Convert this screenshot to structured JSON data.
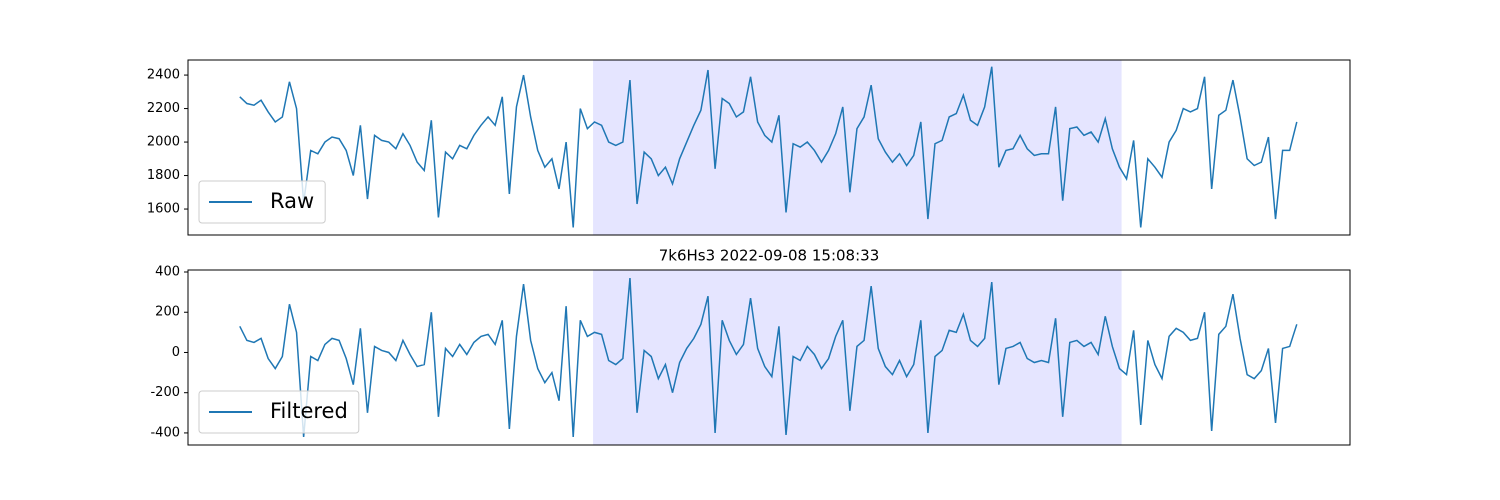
{
  "chart_data": [
    {
      "type": "line",
      "xlim": [
        -7.3,
        156.5
      ],
      "ylim": [
        1445,
        2490
      ],
      "yticks": [
        1600,
        1800,
        2000,
        2200,
        2400
      ],
      "grid": false,
      "legend": "lower left",
      "span": [
        49.8,
        124.3
      ],
      "span_color": "#e5e5ff",
      "series": [
        {
          "name": "Raw",
          "color": "#1f77b4",
          "values": [
            2270,
            2230,
            2220,
            2250,
            2180,
            2120,
            2150,
            2360,
            2200,
            1640,
            1950,
            1930,
            2000,
            2030,
            2020,
            1950,
            1800,
            2100,
            1660,
            2040,
            2010,
            2000,
            1960,
            2050,
            1980,
            1880,
            1830,
            2130,
            1550,
            1940,
            1900,
            1980,
            1960,
            2040,
            2100,
            2150,
            2100,
            2270,
            1690,
            2210,
            2400,
            2150,
            1950,
            1850,
            1900,
            1720,
            2000,
            1490,
            2200,
            2080,
            2120,
            2100,
            2000,
            1980,
            2000,
            2370,
            1630,
            1940,
            1900,
            1800,
            1850,
            1750,
            1900,
            2000,
            2100,
            2190,
            2430,
            1840,
            2260,
            2230,
            2150,
            2180,
            2390,
            2120,
            2040,
            2000,
            2160,
            1580,
            1990,
            1970,
            2000,
            1950,
            1880,
            1950,
            2050,
            2210,
            1700,
            2080,
            2150,
            2340,
            2020,
            1940,
            1880,
            1930,
            1860,
            1920,
            2120,
            1540,
            1990,
            2010,
            2150,
            2170,
            2280,
            2130,
            2100,
            2210,
            2450,
            1850,
            1950,
            1960,
            2040,
            1960,
            1920,
            1930,
            1930,
            2210,
            1650,
            2080,
            2090,
            2040,
            2060,
            2000,
            2140,
            1960,
            1850,
            1780,
            2010,
            1490,
            1900,
            1850,
            1790,
            2000,
            2070,
            2200,
            2180,
            2200,
            2390,
            1720,
            2160,
            2190,
            2370,
            2150,
            1900,
            1860,
            1880,
            2030,
            1540,
            1950,
            1950,
            2120
          ]
        }
      ]
    },
    {
      "type": "line",
      "title": "7k6Hs3 2022-09-08 15:08:33",
      "xlim": [
        -7.3,
        156.5
      ],
      "ylim": [
        -460,
        410
      ],
      "yticks": [
        -400,
        -200,
        0,
        200,
        400
      ],
      "grid": false,
      "legend": "lower left",
      "span": [
        49.8,
        124.3
      ],
      "span_color": "#e5e5ff",
      "series": [
        {
          "name": "Filtered",
          "color": "#1f77b4",
          "values": [
            130,
            60,
            50,
            70,
            -30,
            -80,
            -20,
            240,
            100,
            -420,
            -20,
            -40,
            40,
            70,
            60,
            -30,
            -160,
            120,
            -300,
            30,
            10,
            0,
            -40,
            60,
            -10,
            -70,
            -60,
            200,
            -320,
            20,
            -20,
            40,
            -10,
            50,
            80,
            90,
            40,
            160,
            -380,
            80,
            340,
            60,
            -80,
            -150,
            -100,
            -240,
            230,
            -420,
            160,
            80,
            100,
            90,
            -40,
            -60,
            -30,
            370,
            -300,
            10,
            -20,
            -130,
            -60,
            -200,
            -50,
            20,
            70,
            140,
            280,
            -400,
            160,
            60,
            -10,
            40,
            270,
            20,
            -70,
            -120,
            130,
            -410,
            -20,
            -40,
            30,
            -10,
            -80,
            -30,
            80,
            160,
            -290,
            30,
            60,
            330,
            20,
            -70,
            -110,
            -40,
            -120,
            -60,
            160,
            -400,
            -20,
            10,
            110,
            100,
            190,
            60,
            30,
            70,
            350,
            -160,
            20,
            30,
            50,
            -30,
            -50,
            -40,
            -50,
            170,
            -320,
            50,
            60,
            30,
            50,
            -10,
            180,
            30,
            -80,
            -110,
            110,
            -360,
            60,
            -60,
            -130,
            80,
            120,
            100,
            60,
            70,
            200,
            -390,
            90,
            130,
            290,
            70,
            -110,
            -130,
            -90,
            20,
            -350,
            20,
            30,
            140
          ]
        }
      ]
    }
  ]
}
